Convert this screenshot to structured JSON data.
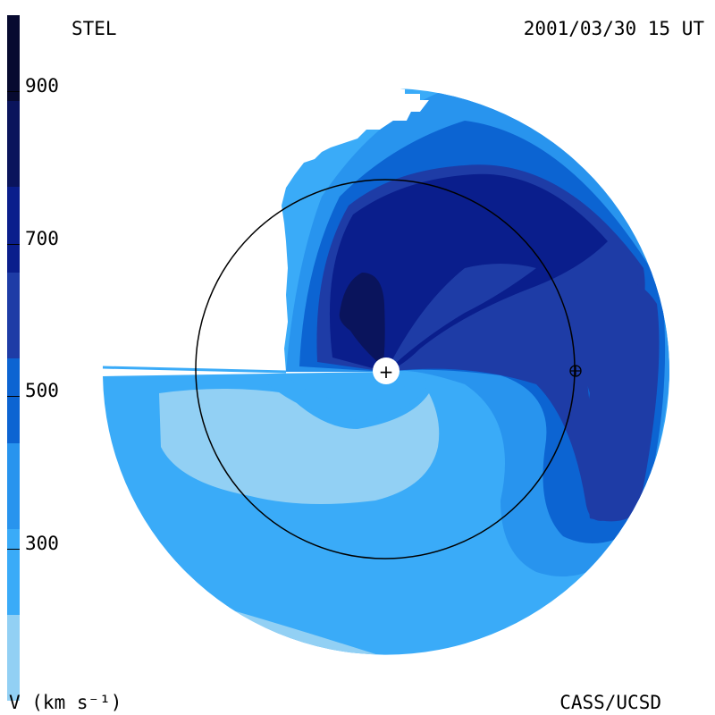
{
  "header": {
    "source": "STEL",
    "datetime": "2001/03/30 15 UT"
  },
  "footer": {
    "credit": "CASS/UCSD",
    "unit": "V (km s⁻¹)"
  },
  "colorbar": {
    "levels_top_to_bottom": [
      "#070a30",
      "#0a145c",
      "#0a1e8c",
      "#1e3ca6",
      "#0c64d2",
      "#2894ee",
      "#3aabf8",
      "#92d0f4"
    ],
    "ticks": [
      {
        "label": "900",
        "value": 900
      },
      {
        "label": "700",
        "value": 700
      },
      {
        "label": "500",
        "value": 500
      },
      {
        "label": "300",
        "value": 300
      }
    ]
  },
  "symbols": {
    "sun": "+",
    "earth": "⊕"
  }
}
